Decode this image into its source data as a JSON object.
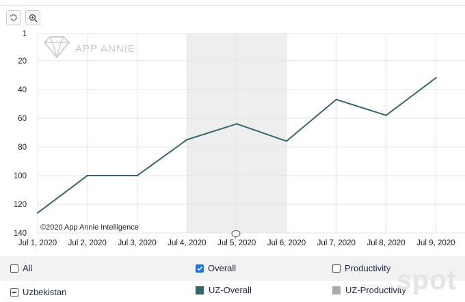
{
  "toolbar": {
    "reset_icon": "undo-icon",
    "zoom_icon": "zoom-in-icon"
  },
  "watermark": "APP ANNIE",
  "copyright": "©2020 App Annie Intelligence",
  "colors": {
    "line": "#35656f",
    "highlight_band": "#eeeeee",
    "uz_overall": "#35656f",
    "uz_productivity": "#aaaaaa",
    "checkbox_checked": "#1a73e8"
  },
  "chart_data": {
    "type": "line",
    "y_reversed": true,
    "y_ticks": [
      "1",
      "20",
      "40",
      "60",
      "80",
      "100",
      "120",
      "140"
    ],
    "ylim": [
      1,
      140
    ],
    "categories": [
      "Jul 1, 2020",
      "Jul 2, 2020",
      "Jul 3, 2020",
      "Jul 4, 2020",
      "Jul 5, 2020",
      "Jul 6, 2020",
      "Jul 7, 2020",
      "Jul 8, 2020",
      "Jul 9, 2020"
    ],
    "series": [
      {
        "name": "UZ-Overall",
        "values": [
          126,
          100,
          100,
          75,
          64,
          76,
          47,
          58,
          32
        ]
      }
    ],
    "highlight_range": [
      "Jul 4, 2020",
      "Jul 6, 2020"
    ],
    "grid": true
  },
  "legend": {
    "all_label": "All",
    "overall_label": "Overall",
    "overall_checked": true,
    "productivity_label": "Productivity",
    "productivity_checked": false,
    "country_label": "Uzbekistan",
    "uz_overall_label": "UZ-Overall",
    "uz_productivity_label": "UZ-Productivity"
  },
  "corner_watermark": "spot"
}
